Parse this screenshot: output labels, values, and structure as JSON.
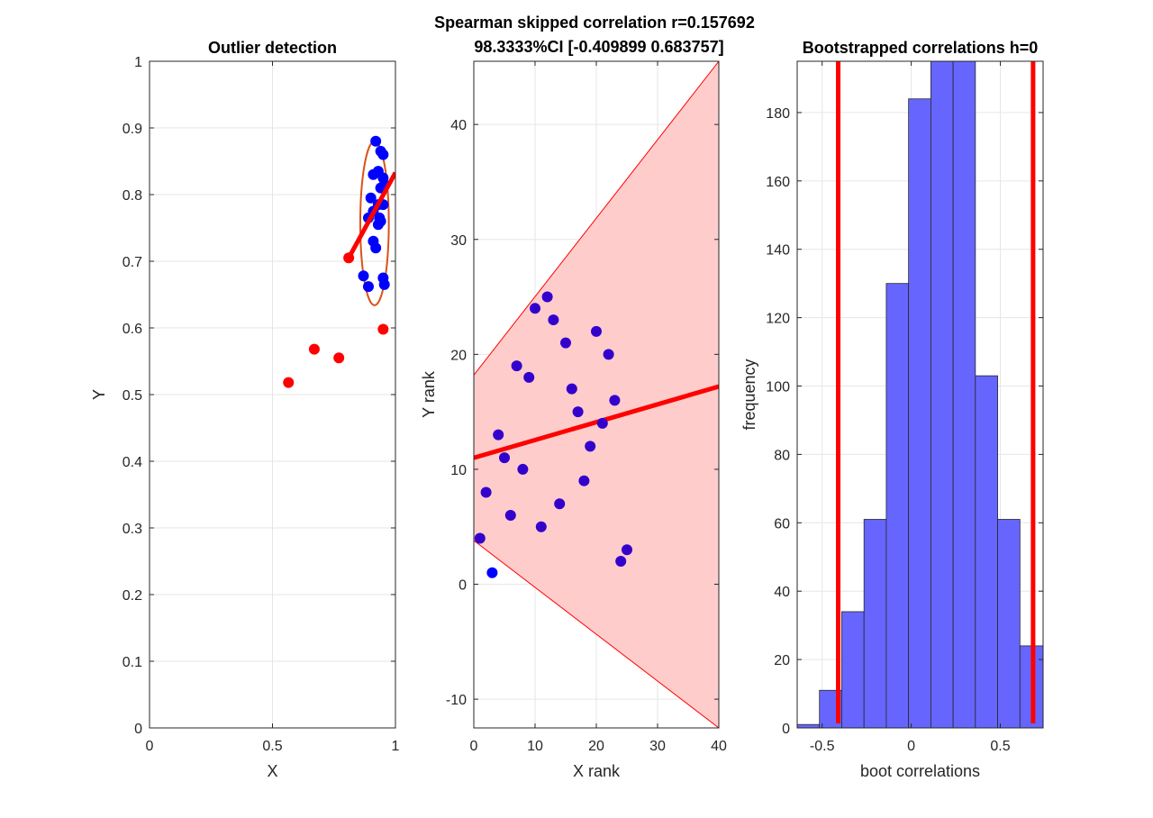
{
  "figure": {
    "suptitle_line1": "Spearman skipped correlation r=0.157692",
    "suptitle_line2": "98.3333%CI [-0.409899 0.683757]"
  },
  "chart_data": [
    {
      "type": "scatter",
      "title": "Outlier detection",
      "xlabel": "X",
      "ylabel": "Y",
      "xlim": [
        0,
        1
      ],
      "ylim": [
        0,
        1
      ],
      "xticks": [
        "0",
        "0.5",
        "1"
      ],
      "yticks": [
        "0",
        "0.1",
        "0.2",
        "0.3",
        "0.4",
        "0.5",
        "0.6",
        "0.7",
        "0.8",
        "0.9",
        "1"
      ],
      "grid": true,
      "colors": {
        "inliers": "#0000ff",
        "outliers": "#ff0000",
        "fit": "#ff0000",
        "ellipse": "#d95319"
      },
      "series": [
        {
          "name": "",
          "color": "#0000ff",
          "points": [
            [
              0.92,
              0.88
            ],
            [
              0.94,
              0.865
            ],
            [
              0.95,
              0.86
            ],
            [
              0.91,
              0.83
            ],
            [
              0.93,
              0.835
            ],
            [
              0.95,
              0.825
            ],
            [
              0.955,
              0.815
            ],
            [
              0.94,
              0.81
            ],
            [
              0.9,
              0.795
            ],
            [
              0.93,
              0.785
            ],
            [
              0.95,
              0.785
            ],
            [
              0.91,
              0.775
            ],
            [
              0.89,
              0.765
            ],
            [
              0.935,
              0.765
            ],
            [
              0.94,
              0.76
            ],
            [
              0.93,
              0.755
            ],
            [
              0.91,
              0.73
            ],
            [
              0.92,
              0.72
            ],
            [
              0.87,
              0.678
            ],
            [
              0.95,
              0.675
            ],
            [
              0.89,
              0.662
            ],
            [
              0.955,
              0.665
            ]
          ]
        },
        {
          "name": "",
          "color": "#ff0000",
          "points": [
            [
              0.81,
              0.705
            ],
            [
              0.95,
              0.598
            ],
            [
              0.67,
              0.568
            ],
            [
              0.77,
              0.555
            ],
            [
              0.565,
              0.518
            ]
          ]
        }
      ],
      "fit_line": [
        [
          0.81,
          0.705
        ],
        [
          1.0,
          0.833
        ]
      ],
      "ellipse": {
        "center": [
          0.915,
          0.757
        ],
        "radii": [
          0.058,
          0.123
        ]
      }
    },
    {
      "type": "scatter",
      "title": "",
      "xlabel": "X rank",
      "ylabel": "Y rank",
      "xlim": [
        0,
        40
      ],
      "ylim": [
        -12.5,
        45.5
      ],
      "xticks": [
        "0",
        "10",
        "20",
        "30",
        "40"
      ],
      "yticks": [
        "-10",
        "0",
        "10",
        "20",
        "30",
        "40"
      ],
      "yticks_values": [
        -10,
        0,
        10,
        20,
        30,
        40
      ],
      "grid": true,
      "colors": {
        "points": "#3300cc",
        "fit": "#ff0000",
        "band": "#ffcccc",
        "band_edge": "#ff0000"
      },
      "points": [
        [
          1,
          4
        ],
        [
          2,
          8
        ],
        [
          3,
          1
        ],
        [
          4,
          13
        ],
        [
          5,
          11
        ],
        [
          6,
          6
        ],
        [
          7,
          19
        ],
        [
          8,
          10
        ],
        [
          9,
          18
        ],
        [
          10,
          24
        ],
        [
          11,
          5
        ],
        [
          12,
          25
        ],
        [
          13,
          23
        ],
        [
          14,
          7
        ],
        [
          15,
          21
        ],
        [
          16,
          17
        ],
        [
          17,
          15
        ],
        [
          18,
          9
        ],
        [
          19,
          12
        ],
        [
          20,
          22
        ],
        [
          21,
          14
        ],
        [
          22,
          20
        ],
        [
          23,
          16
        ],
        [
          24,
          2
        ],
        [
          25,
          3
        ]
      ],
      "fit_line": [
        [
          0,
          11.0
        ],
        [
          40,
          17.2
        ]
      ],
      "ci_band": {
        "upper": [
          [
            0,
            18.2
          ],
          [
            40,
            45.5
          ]
        ],
        "lower": [
          [
            0,
            3.8
          ],
          [
            40,
            -12.5
          ]
        ]
      }
    },
    {
      "type": "bar",
      "title": "Bootstrapped correlations h=0",
      "xlabel": "boot correlations",
      "ylabel": "frequency",
      "xlim": [
        -0.64,
        0.74
      ],
      "ylim": [
        0,
        195
      ],
      "xticks": [
        "-0.5",
        "0",
        "0.5"
      ],
      "xticks_values": [
        -0.5,
        0,
        0.5
      ],
      "yticks": [
        "0",
        "20",
        "40",
        "60",
        "80",
        "100",
        "120",
        "140",
        "160",
        "180"
      ],
      "yticks_values": [
        0,
        20,
        40,
        60,
        80,
        100,
        120,
        140,
        160,
        180
      ],
      "grid": true,
      "colors": {
        "bars": "#6666ff",
        "ci_lines": "#ff0000"
      },
      "bin_edges": [
        -0.64,
        -0.515,
        -0.39,
        -0.265,
        -0.14,
        -0.015,
        0.11,
        0.235,
        0.36,
        0.485,
        0.61,
        0.74
      ],
      "values": [
        1,
        11,
        34,
        61,
        130,
        184,
        196,
        195,
        103,
        61,
        24
      ],
      "ci_lines": [
        -0.409899,
        0.683757
      ]
    }
  ]
}
